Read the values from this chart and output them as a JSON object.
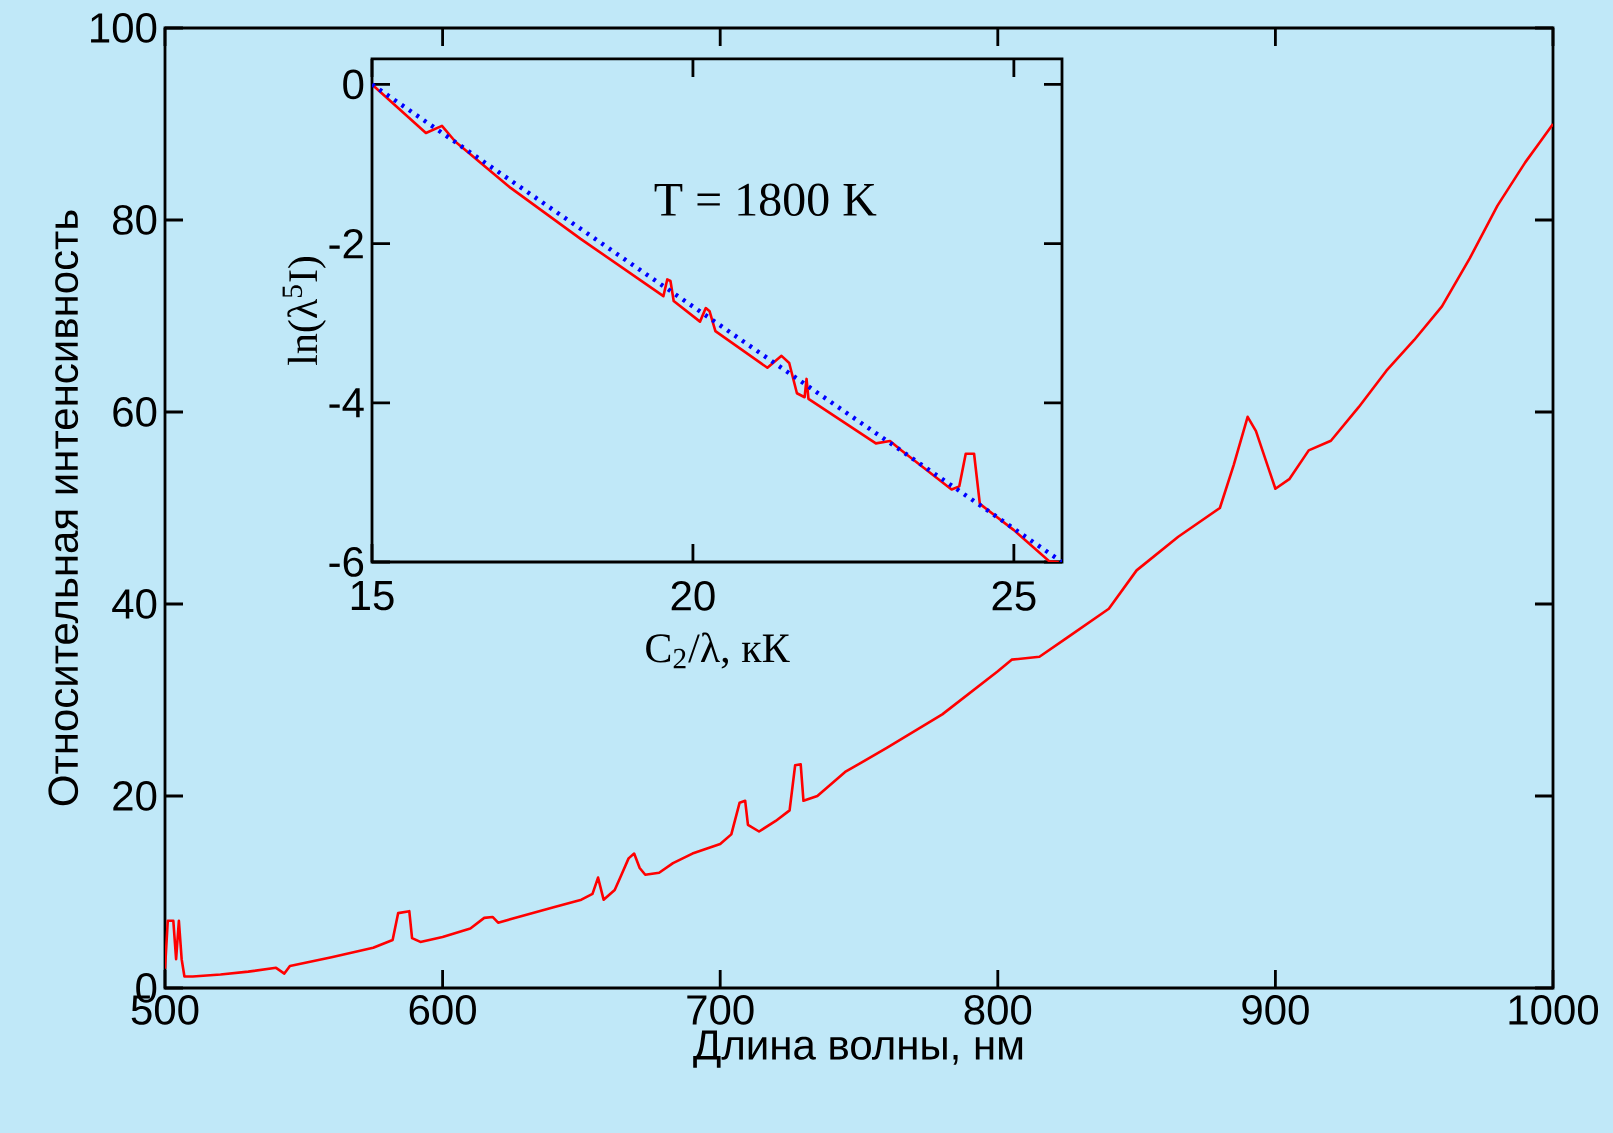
{
  "chart_data": [
    {
      "type": "line",
      "xlabel": "Длина волны, нм",
      "ylabel": "Относительная интенсивность",
      "color": "#ff0000",
      "xlim": [
        500,
        1000
      ],
      "ylim": [
        0,
        100
      ],
      "xticks": [
        500,
        600,
        700,
        800,
        900,
        1000
      ],
      "yticks": [
        0,
        20,
        40,
        60,
        80,
        100
      ],
      "x": [
        500,
        501,
        503,
        504,
        505,
        506,
        507,
        510,
        520,
        530,
        540,
        543,
        545,
        560,
        575,
        582,
        584,
        588,
        589,
        592,
        600,
        610,
        615,
        618,
        620,
        625,
        640,
        650,
        654,
        656,
        658,
        662,
        664,
        667,
        669,
        671,
        673,
        678,
        683,
        690,
        700,
        704,
        707,
        709,
        710,
        714,
        720,
        725,
        727,
        729,
        730,
        735,
        745,
        760,
        780,
        800,
        805,
        815,
        825,
        840,
        850,
        865,
        880,
        885,
        890,
        893,
        900,
        905,
        912,
        920,
        930,
        940,
        950,
        960,
        970,
        980,
        990,
        995,
        1000
      ],
      "values": [
        2,
        7,
        7,
        3,
        7,
        3,
        1.2,
        1.2,
        1.4,
        1.7,
        2.1,
        1.5,
        2.3,
        3.2,
        4.2,
        5,
        7.8,
        8,
        5.2,
        4.8,
        5.3,
        6.2,
        7.3,
        7.4,
        6.8,
        7.2,
        8.4,
        9.2,
        9.8,
        11.5,
        9.2,
        10.2,
        11.5,
        13.5,
        14,
        12.5,
        11.8,
        12,
        13,
        14,
        15,
        16,
        19.3,
        19.5,
        17,
        16.3,
        17.4,
        18.5,
        23.2,
        23.3,
        19.5,
        20,
        22.5,
        25,
        28.5,
        33,
        34.2,
        34.5,
        36.5,
        39.5,
        43.5,
        47,
        50,
        54.5,
        59.5,
        58,
        52,
        53,
        56,
        57,
        60.5,
        64.3,
        67.5,
        71,
        76,
        81.5,
        86,
        88,
        90
      ]
    },
    {
      "type": "line",
      "xlabel": "C$_{2}$/λ, кК",
      "ylabel": "ln(λ$^{5}$I)",
      "xlim": [
        15,
        25.75
      ],
      "ylim": [
        -6,
        0.32
      ],
      "xticks": [
        15,
        20,
        25
      ],
      "yticks": [
        -6,
        -4,
        -2,
        0
      ],
      "annotations": [
        "T = 1800 K"
      ],
      "series": [
        {
          "color": "#ff0000",
          "x": [
            15,
            15.84,
            16.09,
            16.3,
            17.16,
            18.25,
            19.54,
            19.6,
            19.65,
            19.7,
            20.11,
            20.2,
            20.26,
            20.35,
            21.16,
            21.38,
            21.5,
            21.62,
            21.74,
            21.77,
            21.8,
            22.85,
            23.07,
            23.25,
            24.03,
            24.15,
            24.25,
            24.38,
            24.47,
            25.0,
            25.55,
            25.7
          ],
          "values": [
            0,
            -0.61,
            -0.52,
            -0.72,
            -1.3,
            -1.94,
            -2.66,
            -2.45,
            -2.47,
            -2.72,
            -2.98,
            -2.81,
            -2.85,
            -3.1,
            -3.56,
            -3.41,
            -3.5,
            -3.88,
            -3.93,
            -3.7,
            -3.95,
            -4.51,
            -4.48,
            -4.6,
            -5.09,
            -5.05,
            -4.64,
            -4.64,
            -5.27,
            -5.6,
            -5.99,
            -6
          ]
        },
        {
          "color": "#0000ff",
          "line_style": "dotted",
          "x": [
            15,
            25.75
          ],
          "values": [
            0,
            -6
          ]
        }
      ]
    }
  ]
}
